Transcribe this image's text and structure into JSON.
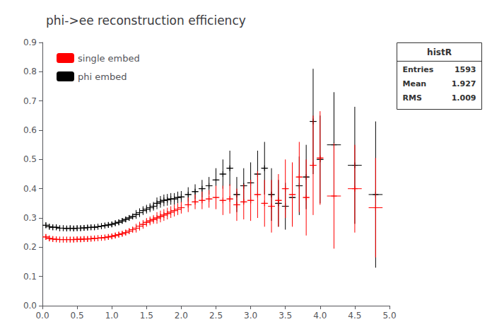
{
  "chart_data": {
    "type": "errorbar",
    "title": "phi->ee reconstruction efficiency",
    "xlim": [
      0,
      5
    ],
    "ylim": [
      0,
      0.9
    ],
    "xticks": [
      {
        "value": 0,
        "label": "0.0"
      },
      0.5,
      {
        "value": 1,
        "label": "1.0"
      },
      1.5,
      {
        "value": 2,
        "label": "2.0"
      },
      2.5,
      {
        "value": 3,
        "label": "3.0"
      },
      3.5,
      {
        "value": 4,
        "label": "4.0"
      },
      4.5,
      {
        "value": 5,
        "label": "5.0"
      }
    ],
    "yticks": [
      {
        "value": 0,
        "label": "0.0"
      },
      0.1,
      0.2,
      0.3,
      0.4,
      0.5,
      0.6,
      0.7,
      0.8,
      0.9
    ],
    "grid": false,
    "legend": "upper left",
    "marker": "plus",
    "series": [
      {
        "name": "phi embed",
        "color": "black",
        "x": [
          0.05,
          0.1,
          0.15,
          0.2,
          0.25,
          0.3,
          0.35,
          0.4,
          0.45,
          0.5,
          0.55,
          0.6,
          0.65,
          0.7,
          0.75,
          0.8,
          0.85,
          0.9,
          0.95,
          1.0,
          1.05,
          1.1,
          1.15,
          1.2,
          1.25,
          1.3,
          1.35,
          1.4,
          1.45,
          1.5,
          1.55,
          1.6,
          1.65,
          1.7,
          1.75,
          1.8,
          1.85,
          1.9,
          1.95,
          2.0,
          2.1,
          2.2,
          2.3,
          2.4,
          2.5,
          2.6,
          2.7,
          2.8,
          2.9,
          3.0,
          3.1,
          3.2,
          3.3,
          3.4,
          3.5,
          3.6,
          3.7,
          3.8,
          3.9,
          4.0,
          4.2,
          4.5,
          4.8
        ],
        "values": [
          0.275,
          0.27,
          0.268,
          0.268,
          0.265,
          0.265,
          0.264,
          0.265,
          0.264,
          0.265,
          0.265,
          0.266,
          0.267,
          0.268,
          0.268,
          0.27,
          0.272,
          0.274,
          0.276,
          0.278,
          0.282,
          0.285,
          0.29,
          0.295,
          0.3,
          0.305,
          0.312,
          0.318,
          0.325,
          0.33,
          0.335,
          0.34,
          0.35,
          0.355,
          0.36,
          0.362,
          0.365,
          0.365,
          0.37,
          0.372,
          0.38,
          0.39,
          0.4,
          0.41,
          0.43,
          0.45,
          0.47,
          0.38,
          0.41,
          0.42,
          0.45,
          0.47,
          0.38,
          0.35,
          0.34,
          0.37,
          0.41,
          0.44,
          0.63,
          0.5,
          0.55,
          0.48,
          0.38
        ],
        "xerr": [
          0.05,
          0.05,
          0.05,
          0.05,
          0.05,
          0.05,
          0.05,
          0.05,
          0.05,
          0.05,
          0.05,
          0.05,
          0.05,
          0.05,
          0.05,
          0.05,
          0.05,
          0.05,
          0.05,
          0.05,
          0.05,
          0.05,
          0.05,
          0.05,
          0.05,
          0.05,
          0.05,
          0.05,
          0.05,
          0.05,
          0.05,
          0.05,
          0.05,
          0.05,
          0.05,
          0.05,
          0.05,
          0.05,
          0.05,
          0.05,
          0.05,
          0.05,
          0.05,
          0.05,
          0.05,
          0.05,
          0.05,
          0.05,
          0.05,
          0.05,
          0.05,
          0.05,
          0.05,
          0.05,
          0.05,
          0.05,
          0.05,
          0.05,
          0.05,
          0.05,
          0.1,
          0.1,
          0.1
        ],
        "yerr": [
          0.01,
          0.01,
          0.01,
          0.01,
          0.01,
          0.01,
          0.01,
          0.01,
          0.01,
          0.01,
          0.01,
          0.01,
          0.01,
          0.01,
          0.01,
          0.01,
          0.01,
          0.01,
          0.01,
          0.01,
          0.01,
          0.01,
          0.01,
          0.01,
          0.01,
          0.01,
          0.015,
          0.015,
          0.015,
          0.015,
          0.015,
          0.015,
          0.02,
          0.02,
          0.02,
          0.02,
          0.02,
          0.02,
          0.02,
          0.02,
          0.025,
          0.025,
          0.03,
          0.03,
          0.04,
          0.05,
          0.06,
          0.06,
          0.06,
          0.07,
          0.08,
          0.09,
          0.09,
          0.08,
          0.08,
          0.09,
          0.1,
          0.11,
          0.18,
          0.15,
          0.18,
          0.2,
          0.25
        ]
      },
      {
        "name": "single embed",
        "color": "red",
        "x": [
          0.05,
          0.1,
          0.15,
          0.2,
          0.25,
          0.3,
          0.35,
          0.4,
          0.45,
          0.5,
          0.55,
          0.6,
          0.65,
          0.7,
          0.75,
          0.8,
          0.85,
          0.9,
          0.95,
          1.0,
          1.05,
          1.1,
          1.15,
          1.2,
          1.25,
          1.3,
          1.35,
          1.4,
          1.45,
          1.5,
          1.55,
          1.6,
          1.65,
          1.7,
          1.75,
          1.8,
          1.85,
          1.9,
          1.95,
          2.0,
          2.1,
          2.2,
          2.3,
          2.4,
          2.5,
          2.6,
          2.7,
          2.8,
          2.9,
          3.0,
          3.1,
          3.2,
          3.3,
          3.4,
          3.5,
          3.6,
          3.7,
          3.8,
          3.9,
          4.0,
          4.2,
          4.5,
          4.8
        ],
        "values": [
          0.235,
          0.23,
          0.228,
          0.227,
          0.226,
          0.226,
          0.226,
          0.226,
          0.226,
          0.227,
          0.227,
          0.228,
          0.228,
          0.229,
          0.23,
          0.231,
          0.232,
          0.233,
          0.235,
          0.237,
          0.24,
          0.243,
          0.246,
          0.25,
          0.255,
          0.26,
          0.265,
          0.272,
          0.278,
          0.285,
          0.29,
          0.295,
          0.3,
          0.305,
          0.31,
          0.315,
          0.32,
          0.325,
          0.33,
          0.335,
          0.345,
          0.355,
          0.36,
          0.365,
          0.37,
          0.36,
          0.365,
          0.345,
          0.355,
          0.36,
          0.38,
          0.35,
          0.34,
          0.36,
          0.4,
          0.38,
          0.44,
          0.37,
          0.48,
          0.505,
          0.375,
          0.4,
          0.335
        ],
        "xerr": [
          0.05,
          0.05,
          0.05,
          0.05,
          0.05,
          0.05,
          0.05,
          0.05,
          0.05,
          0.05,
          0.05,
          0.05,
          0.05,
          0.05,
          0.05,
          0.05,
          0.05,
          0.05,
          0.05,
          0.05,
          0.05,
          0.05,
          0.05,
          0.05,
          0.05,
          0.05,
          0.05,
          0.05,
          0.05,
          0.05,
          0.05,
          0.05,
          0.05,
          0.05,
          0.05,
          0.05,
          0.05,
          0.05,
          0.05,
          0.05,
          0.05,
          0.05,
          0.05,
          0.05,
          0.05,
          0.05,
          0.05,
          0.05,
          0.05,
          0.05,
          0.05,
          0.05,
          0.05,
          0.05,
          0.05,
          0.05,
          0.05,
          0.05,
          0.05,
          0.05,
          0.1,
          0.1,
          0.1
        ],
        "yerr": [
          0.01,
          0.01,
          0.01,
          0.01,
          0.01,
          0.01,
          0.01,
          0.01,
          0.01,
          0.01,
          0.01,
          0.01,
          0.01,
          0.01,
          0.01,
          0.01,
          0.01,
          0.01,
          0.01,
          0.01,
          0.01,
          0.01,
          0.01,
          0.01,
          0.01,
          0.01,
          0.015,
          0.015,
          0.015,
          0.015,
          0.015,
          0.015,
          0.02,
          0.02,
          0.02,
          0.02,
          0.02,
          0.02,
          0.02,
          0.02,
          0.025,
          0.025,
          0.03,
          0.03,
          0.04,
          0.05,
          0.05,
          0.055,
          0.06,
          0.07,
          0.08,
          0.08,
          0.09,
          0.09,
          0.1,
          0.11,
          0.12,
          0.13,
          0.17,
          0.16,
          0.18,
          0.15,
          0.17
        ]
      }
    ],
    "stats_box": {
      "title": "histR",
      "rows": [
        {
          "label": "Entries",
          "value": 1593
        },
        {
          "label": "Mean",
          "value": 1.927
        },
        {
          "label": "RMS",
          "value": 1.009
        }
      ]
    }
  }
}
